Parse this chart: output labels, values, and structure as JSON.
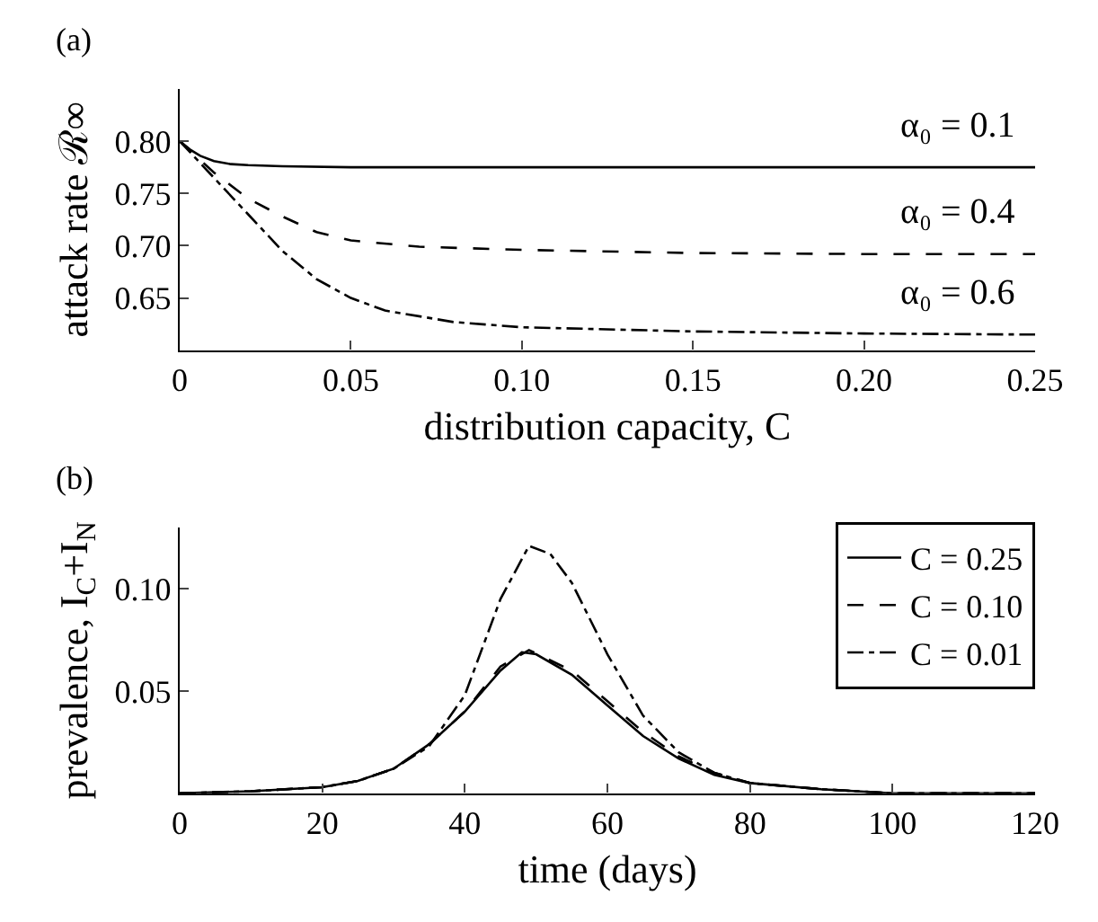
{
  "chart_data": [
    {
      "type": "line",
      "xlabel": "distribution capacity, C",
      "ylabel": "attack rate ℛ∞",
      "annotations": [
        "(a)",
        "α₀ = 0.1",
        "α₀ = 0.4",
        "α₀ = 0.6"
      ],
      "xlim": [
        0,
        0.25
      ],
      "ylim": [
        0.6,
        0.85
      ],
      "xticks": [
        0,
        0.05,
        {
          "value": 0.1,
          "label": "0.10"
        },
        0.15,
        {
          "value": 0.2,
          "label": "0.20"
        },
        0.25
      ],
      "yticks": [
        0.65,
        {
          "value": 0.7,
          "label": "0.70"
        },
        0.75,
        {
          "value": 0.8,
          "label": "0.80"
        }
      ],
      "legend": false,
      "marker": "none",
      "series": [
        {
          "color": "#000000",
          "line_style": "solid",
          "x": [
            0,
            0.003,
            0.006,
            0.01,
            0.015,
            0.02,
            0.03,
            0.05,
            0.1,
            0.15,
            0.2,
            0.25
          ],
          "values": [
            0.8,
            0.792,
            0.786,
            0.781,
            0.778,
            0.777,
            0.776,
            0.775,
            0.775,
            0.775,
            0.775,
            0.775
          ]
        },
        {
          "color": "#000000",
          "line_style": "dashed",
          "x": [
            0,
            0.01,
            0.02,
            0.03,
            0.04,
            0.05,
            0.07,
            0.1,
            0.15,
            0.2,
            0.25
          ],
          "values": [
            0.8,
            0.77,
            0.745,
            0.728,
            0.713,
            0.705,
            0.699,
            0.696,
            0.693,
            0.692,
            0.692
          ]
        },
        {
          "color": "#000000",
          "line_style": "dashdot",
          "x": [
            0,
            0.01,
            0.02,
            0.03,
            0.04,
            0.05,
            0.06,
            0.08,
            0.1,
            0.15,
            0.2,
            0.25
          ],
          "values": [
            0.8,
            0.765,
            0.73,
            0.695,
            0.668,
            0.65,
            0.638,
            0.627,
            0.622,
            0.618,
            0.616,
            0.615
          ]
        }
      ]
    },
    {
      "type": "line",
      "xlabel": "time (days)",
      "ylabel": "prevalence, I$_{C}$+I$_{N}$",
      "annotations": [
        "(b)"
      ],
      "xlim": [
        0,
        120
      ],
      "ylim": [
        0,
        0.13
      ],
      "xticks": [
        0,
        20,
        40,
        60,
        80,
        100,
        120
      ],
      "yticks": [
        0.05,
        {
          "value": 0.1,
          "label": "0.10"
        }
      ],
      "legend": "top right",
      "marker": "none",
      "series": [
        {
          "name": "C = 0.25",
          "color": "#000000",
          "line_style": "solid",
          "x": [
            0,
            10,
            20,
            25,
            30,
            35,
            40,
            45,
            48,
            50,
            55,
            60,
            65,
            70,
            75,
            80,
            90,
            100,
            110,
            120
          ],
          "values": [
            0,
            0.001,
            0.003,
            0.006,
            0.012,
            0.024,
            0.04,
            0.06,
            0.069,
            0.068,
            0.058,
            0.043,
            0.028,
            0.017,
            0.009,
            0.005,
            0.002,
            0,
            0,
            0
          ]
        },
        {
          "name": "C = 0.10",
          "color": "#000000",
          "line_style": "dashed",
          "x": [
            0,
            10,
            20,
            25,
            30,
            35,
            40,
            45,
            49,
            55,
            60,
            65,
            70,
            75,
            80,
            90,
            100,
            110,
            120
          ],
          "values": [
            0,
            0.001,
            0.003,
            0.006,
            0.012,
            0.024,
            0.04,
            0.062,
            0.07,
            0.06,
            0.045,
            0.03,
            0.018,
            0.01,
            0.005,
            0.002,
            0,
            0,
            0
          ]
        },
        {
          "name": "C = 0.01",
          "color": "#000000",
          "line_style": "dashdot",
          "x": [
            0,
            10,
            20,
            25,
            30,
            35,
            40,
            45,
            49,
            52,
            55,
            60,
            65,
            70,
            75,
            80,
            90,
            100,
            110,
            120
          ],
          "values": [
            0,
            0.001,
            0.003,
            0.006,
            0.012,
            0.023,
            0.048,
            0.095,
            0.121,
            0.117,
            0.103,
            0.068,
            0.038,
            0.02,
            0.01,
            0.005,
            0.002,
            0,
            0,
            0
          ]
        }
      ]
    }
  ]
}
